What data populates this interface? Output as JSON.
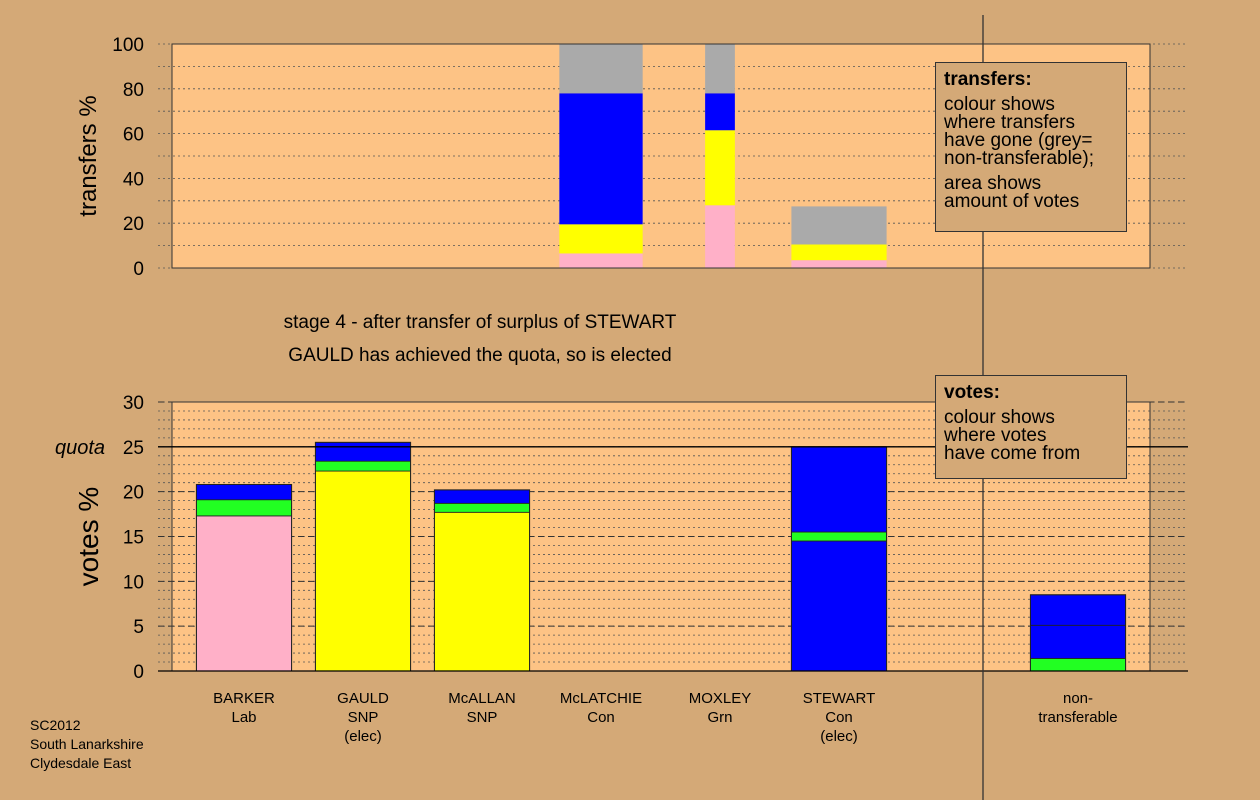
{
  "colors": {
    "page_bg": "#d4a977",
    "plot_bg": "#fdc385",
    "Lab": "#ffb0c8",
    "SNP": "#ffff00",
    "Con": "#0000ff",
    "Grn": "#22ff22",
    "nontransferable": "#aaaaaa"
  },
  "stage_text": "stage 4 - after transfer of surplus of STEWART",
  "elected_text": "GAULD has achieved the quota, so is elected",
  "footer": [
    "SC2012",
    "South Lanarkshire",
    "Clydesdale East"
  ],
  "legend_transfers": {
    "title": "transfers:",
    "lines1": [
      "colour shows",
      "where transfers",
      "have gone (grey=",
      "non-transferable);"
    ],
    "lines2": [
      "area shows",
      "amount of votes"
    ]
  },
  "legend_votes": {
    "title": "votes:",
    "lines": [
      "colour shows",
      "where votes",
      "have come from"
    ]
  },
  "chart_data": [
    {
      "type": "bar",
      "stacked": true,
      "ylabel": "transfers %",
      "ylim": [
        0,
        100
      ],
      "yticks": [
        0,
        20,
        40,
        60,
        80,
        100
      ],
      "grid": "dotted",
      "bars": [
        {
          "category": "McLATCHIE",
          "width": 0.7,
          "segments": [
            {
              "source": "Lab",
              "value": 6.5
            },
            {
              "source": "SNP",
              "value": 13
            },
            {
              "source": "Con",
              "value": 58.5
            },
            {
              "source": "nontransferable",
              "value": 22
            }
          ]
        },
        {
          "category": "MOXLEY",
          "width": 0.25,
          "segments": [
            {
              "source": "Lab",
              "value": 28
            },
            {
              "source": "SNP",
              "value": 33.5
            },
            {
              "source": "Con",
              "value": 16.5
            },
            {
              "source": "nontransferable",
              "value": 22
            }
          ]
        },
        {
          "category": "STEWART",
          "width": 0.8,
          "segments": [
            {
              "source": "Lab",
              "value": 3.5
            },
            {
              "source": "SNP",
              "value": 7
            },
            {
              "source": "nontransferable",
              "value": 17
            }
          ]
        }
      ]
    },
    {
      "type": "bar",
      "stacked": true,
      "ylabel": "votes %",
      "ylim": [
        0,
        30
      ],
      "yticks": [
        0,
        5,
        10,
        15,
        20,
        25,
        30
      ],
      "quota": 25,
      "quota_label": "quota",
      "grid": "dotted",
      "categories": [
        {
          "name": "BARKER",
          "party": "Lab",
          "note": ""
        },
        {
          "name": "GAULD",
          "party": "SNP",
          "note": "(elec)"
        },
        {
          "name": "McALLAN",
          "party": "SNP",
          "note": ""
        },
        {
          "name": "McLATCHIE",
          "party": "Con",
          "note": ""
        },
        {
          "name": "MOXLEY",
          "party": "Grn",
          "note": ""
        },
        {
          "name": "STEWART",
          "party": "Con",
          "note": "(elec)"
        },
        {
          "name": "non-",
          "party": "transferable",
          "note": ""
        }
      ],
      "bars": [
        {
          "category": "BARKER",
          "segments": [
            {
              "source": "Lab",
              "value": 17.3
            },
            {
              "source": "Grn",
              "value": 1.8
            },
            {
              "source": "Con",
              "value": 1.7
            }
          ]
        },
        {
          "category": "GAULD",
          "segments": [
            {
              "source": "SNP",
              "value": 22.3
            },
            {
              "source": "Grn",
              "value": 1.1
            },
            {
              "source": "Con",
              "value": 2.1
            }
          ]
        },
        {
          "category": "McALLAN",
          "segments": [
            {
              "source": "SNP",
              "value": 17.7
            },
            {
              "source": "Grn",
              "value": 1.0
            },
            {
              "source": "Con",
              "value": 1.5
            }
          ]
        },
        {
          "category": "McLATCHIE",
          "segments": []
        },
        {
          "category": "MOXLEY",
          "segments": []
        },
        {
          "category": "STEWART",
          "segments": [
            {
              "source": "Con",
              "value": 14.5
            },
            {
              "source": "Grn",
              "value": 1.0
            },
            {
              "source": "Con",
              "value": 9.5
            }
          ]
        },
        {
          "category": "non-transferable",
          "segments": [
            {
              "source": "Grn",
              "value": 1.4
            },
            {
              "source": "Con",
              "value": 3.7
            },
            {
              "source": "Con",
              "value": 3.4
            }
          ]
        }
      ]
    }
  ]
}
